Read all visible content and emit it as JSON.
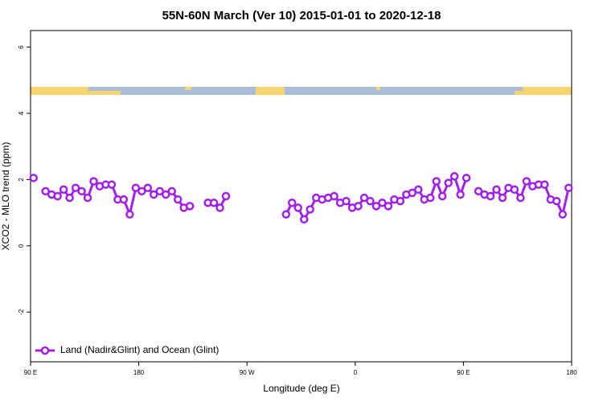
{
  "chart_data": {
    "type": "line",
    "title": "55N-60N March (Ver 10)   2015-01-01 to 2020-12-18",
    "xlabel": "Longitude (deg E)",
    "ylabel": "XCO2 - MLO trend (ppm)",
    "xlim": [
      90,
      540
    ],
    "ylim": [
      -3.5,
      6.5
    ],
    "xticks": [
      {
        "value": 90,
        "label": "90 E"
      },
      {
        "value": 180,
        "label": "180"
      },
      {
        "value": 270,
        "label": "90 W"
      },
      {
        "value": 360,
        "label": "0"
      },
      {
        "value": 450,
        "label": "90 E"
      },
      {
        "value": 540,
        "label": "180"
      }
    ],
    "yticks": [
      -2,
      0,
      2,
      4,
      6
    ],
    "legend": "bottom-left",
    "x": [
      92.5,
      97.5,
      102.5,
      107.5,
      112.5,
      117.5,
      122.5,
      127.5,
      132.5,
      137.5,
      142.5,
      147.5,
      152.5,
      157.5,
      162.5,
      167.5,
      172.5,
      177.5,
      182.5,
      187.5,
      192.5,
      197.5,
      202.5,
      207.5,
      212.5,
      217.5,
      222.5,
      227.5,
      237.5,
      242.5,
      247.5,
      252.5,
      257.5,
      302.5,
      307.5,
      312.5,
      317.5,
      322.5,
      327.5,
      332.5,
      337.5,
      342.5,
      347.5,
      352.5,
      357.5,
      362.5,
      367.5,
      372.5,
      377.5,
      382.5,
      387.5,
      392.5,
      397.5,
      402.5,
      407.5,
      412.5,
      417.5,
      422.5,
      427.5,
      432.5,
      437.5,
      442.5,
      447.5,
      452.5,
      457.5,
      462.5,
      467.5,
      472.5,
      477.5,
      482.5,
      487.5,
      492.5,
      497.5,
      502.5,
      507.5,
      512.5,
      517.5,
      522.5,
      527.5,
      532.5,
      537.5
    ],
    "series": [
      {
        "name": "Land (Nadir&Glint) and Ocean (Glint)",
        "color": "#a020f0",
        "values": [
          2.05,
          null,
          1.65,
          1.55,
          1.5,
          1.7,
          1.45,
          1.75,
          1.65,
          1.45,
          1.95,
          1.8,
          1.85,
          1.85,
          1.4,
          1.4,
          0.95,
          1.75,
          1.65,
          1.75,
          1.55,
          1.65,
          1.55,
          1.65,
          1.4,
          1.15,
          1.2,
          null,
          1.3,
          1.3,
          1.15,
          1.5,
          null,
          0.95,
          1.3,
          1.15,
          0.8,
          1.1,
          1.45,
          1.4,
          1.45,
          1.5,
          1.3,
          1.35,
          1.15,
          1.2,
          1.45,
          1.35,
          1.2,
          1.3,
          1.2,
          1.4,
          1.35,
          1.55,
          1.6,
          1.7,
          1.4,
          1.45,
          1.95,
          1.5,
          1.9,
          2.1,
          1.55,
          2.05,
          null,
          1.65,
          1.55,
          1.5,
          1.7,
          1.45,
          1.75,
          1.7,
          1.45,
          1.95,
          1.8,
          1.85,
          1.85,
          1.4,
          1.35,
          0.95,
          1.75
        ]
      }
    ]
  }
}
